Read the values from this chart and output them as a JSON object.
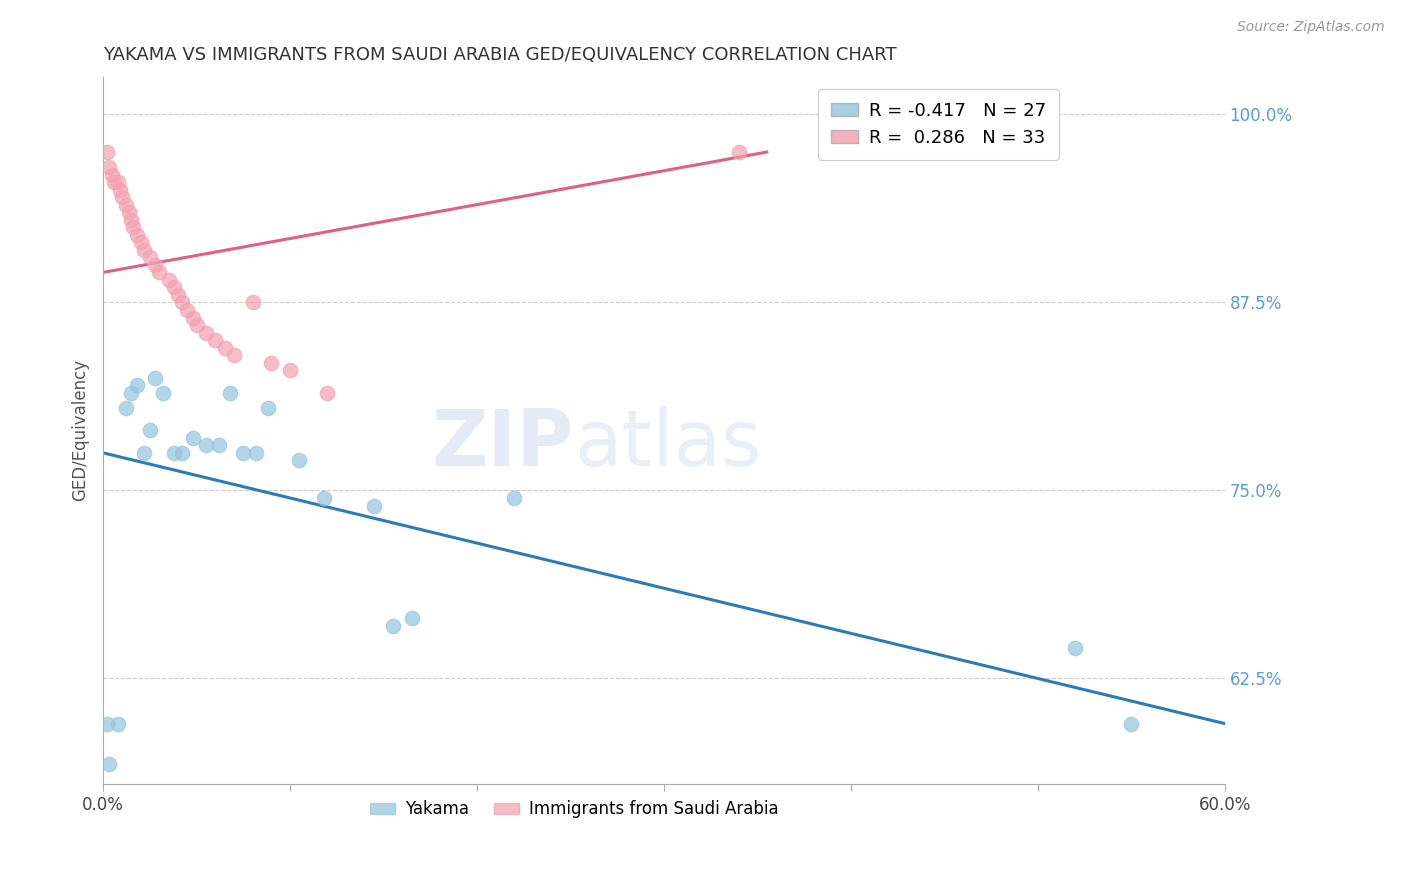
{
  "title": "YAKAMA VS IMMIGRANTS FROM SAUDI ARABIA GED/EQUIVALENCY CORRELATION CHART",
  "source": "Source: ZipAtlas.com",
  "ylabel": "GED/Equivalency",
  "xlim": [
    0.0,
    0.6
  ],
  "ylim": [
    0.555,
    1.025
  ],
  "xticks": [
    0.0,
    0.1,
    0.2,
    0.3,
    0.4,
    0.5,
    0.6
  ],
  "xticklabels": [
    "0.0%",
    "",
    "",
    "",
    "",
    "",
    "60.0%"
  ],
  "yticks_right": [
    0.625,
    0.75,
    0.875,
    1.0
  ],
  "ytick_right_labels": [
    "62.5%",
    "75.0%",
    "87.5%",
    "100.0%"
  ],
  "legend_entries": [
    {
      "label": "R = -0.417   N = 27",
      "color": "#92c5de"
    },
    {
      "label": "R =  0.286   N = 33",
      "color": "#f4a0b0"
    }
  ],
  "legend_bottom": [
    "Yakama",
    "Immigrants from Saudi Arabia"
  ],
  "watermark_zip": "ZIP",
  "watermark_atlas": "atlas",
  "blue_color": "#92c5de",
  "pink_color": "#f4a0b0",
  "blue_line_color": "#2b7bba",
  "pink_line_color": "#e06080",
  "grid_color": "#cccccc",
  "background_color": "#ffffff",
  "yakama_x": [
    0.002,
    0.003,
    0.008,
    0.012,
    0.015,
    0.018,
    0.022,
    0.025,
    0.028,
    0.032,
    0.038,
    0.042,
    0.048,
    0.055,
    0.062,
    0.068,
    0.075,
    0.082,
    0.088,
    0.105,
    0.118,
    0.145,
    0.155,
    0.165,
    0.22,
    0.52,
    0.55
  ],
  "yakama_y": [
    0.595,
    0.568,
    0.595,
    0.805,
    0.815,
    0.82,
    0.775,
    0.79,
    0.825,
    0.815,
    0.775,
    0.775,
    0.785,
    0.78,
    0.78,
    0.815,
    0.775,
    0.775,
    0.805,
    0.77,
    0.745,
    0.74,
    0.66,
    0.665,
    0.745,
    0.645,
    0.595
  ],
  "saudi_x": [
    0.002,
    0.003,
    0.005,
    0.006,
    0.008,
    0.009,
    0.01,
    0.012,
    0.014,
    0.015,
    0.016,
    0.018,
    0.02,
    0.022,
    0.025,
    0.028,
    0.03,
    0.035,
    0.038,
    0.04,
    0.042,
    0.045,
    0.048,
    0.05,
    0.055,
    0.06,
    0.065,
    0.07,
    0.08,
    0.09,
    0.1,
    0.12,
    0.34
  ],
  "saudi_y": [
    0.975,
    0.965,
    0.96,
    0.955,
    0.955,
    0.95,
    0.945,
    0.94,
    0.935,
    0.93,
    0.925,
    0.92,
    0.915,
    0.91,
    0.905,
    0.9,
    0.895,
    0.89,
    0.885,
    0.88,
    0.875,
    0.87,
    0.865,
    0.86,
    0.855,
    0.85,
    0.845,
    0.84,
    0.875,
    0.835,
    0.83,
    0.815,
    0.975
  ],
  "blue_line_x": [
    0.0,
    0.6
  ],
  "blue_line_y": [
    0.775,
    0.595
  ],
  "pink_line_x": [
    0.0,
    0.355
  ],
  "pink_line_y": [
    0.895,
    0.975
  ]
}
